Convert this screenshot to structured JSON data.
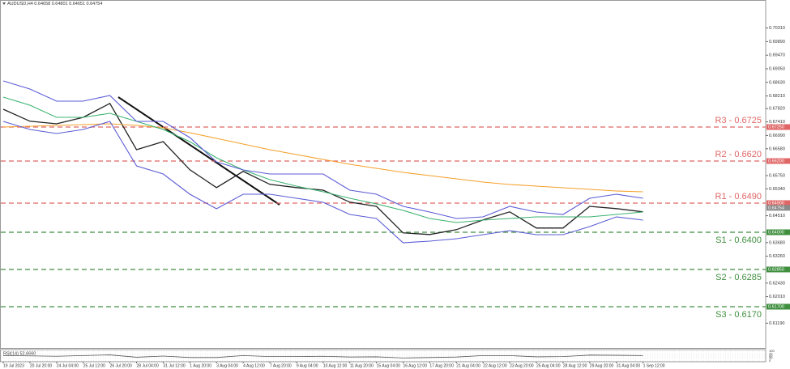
{
  "chart_data": {
    "type": "line",
    "title": "AUDUSD,H4 0.64658 0.64801 0.64651 0.64754",
    "categories": [
      "19 Jul 2023",
      "20 Jul 20:00",
      "24 Jul 04:00",
      "25 Jul 12:00",
      "26 Jul 20:00",
      "28 Jul 04:00",
      "31 Jul 12:00",
      "1 Aug 20:00",
      "3 Aug 04:00",
      "4 Aug 12:00",
      "7 Aug 20:00",
      "9 Aug 04:00",
      "10 Aug 12:00",
      "11 Aug 20:00",
      "15 Aug 04:00",
      "16 Aug 12:00",
      "17 Aug 20:00",
      "21 Aug 04:00",
      "22 Aug 12:00",
      "23 Aug 20:00",
      "25 Aug 04:00",
      "28 Aug 12:00",
      "29 Aug 20:00",
      "31 Aug 04:00",
      "1 Sep 12:00"
    ],
    "series": [
      {
        "color": "#222222",
        "values": [
          0.678,
          0.6743,
          0.6735,
          0.6755,
          0.6798,
          0.6655,
          0.668,
          0.6593,
          0.6538,
          0.6588,
          0.6548,
          0.6538,
          0.653,
          0.6493,
          0.648,
          0.6398,
          0.6393,
          0.6408,
          0.6438,
          0.6463,
          0.6413,
          0.6413,
          0.648,
          0.6473,
          0.6463
        ]
      },
      {
        "color": "#f5a02a",
        "values": [
          0.6725,
          0.67275,
          0.673,
          0.67325,
          0.6735,
          0.673,
          0.67225,
          0.67075,
          0.669,
          0.66725,
          0.6655,
          0.664,
          0.6625,
          0.661,
          0.65975,
          0.6585,
          0.6575,
          0.6565,
          0.6555,
          0.65475,
          0.65425,
          0.65375,
          0.65325,
          0.65275,
          0.6525
        ]
      },
      {
        "color": "#3cb371",
        "values": [
          0.68175,
          0.67925,
          0.6755,
          0.6755,
          0.67675,
          0.67425,
          0.67175,
          0.668,
          0.663,
          0.65925,
          0.65625,
          0.65425,
          0.6525,
          0.6505,
          0.64875,
          0.64675,
          0.64425,
          0.643,
          0.64375,
          0.64425,
          0.64475,
          0.64475,
          0.64475,
          0.6455,
          0.64625
        ]
      },
      {
        "color": "#5b5bd6",
        "values": [
          0.68675,
          0.68425,
          0.6805,
          0.6805,
          0.68225,
          0.67425,
          0.67425,
          0.66925,
          0.66175,
          0.65925,
          0.658,
          0.658,
          0.658,
          0.653,
          0.65175,
          0.648,
          0.64625,
          0.64425,
          0.64475,
          0.648,
          0.64625,
          0.6455,
          0.6505,
          0.65175,
          0.6505
        ]
      },
      {
        "color": "#5b5bd6",
        "values": [
          0.67425,
          0.67175,
          0.6705,
          0.67175,
          0.67425,
          0.6605,
          0.658,
          0.65175,
          0.64725,
          0.65175,
          0.65175,
          0.6505,
          0.64925,
          0.6455,
          0.64425,
          0.63675,
          0.63725,
          0.638,
          0.63925,
          0.6405,
          0.63925,
          0.63925,
          0.64175,
          0.64475,
          0.64375
        ]
      }
    ],
    "ylim": [
      0.60425,
      0.71175
    ],
    "yticks": [
      {
        "value": 0.7031,
        "label": "0.70310"
      },
      {
        "value": 0.6989,
        "label": "0.69890"
      },
      {
        "value": 0.6947,
        "label": "0.69470"
      },
      {
        "value": 0.6905,
        "label": "0.69050"
      },
      {
        "value": 0.6863,
        "label": "0.68630"
      },
      {
        "value": 0.6821,
        "label": "0.68210"
      },
      {
        "value": 0.6782,
        "label": "0.67820"
      },
      {
        "value": 0.6741,
        "label": "0.67410"
      },
      {
        "value": 0.6699,
        "label": "0.66990"
      },
      {
        "value": 0.6658,
        "label": "0.66580"
      },
      {
        "value": 0.6575,
        "label": "0.65750"
      },
      {
        "value": 0.6534,
        "label": "0.65340"
      },
      {
        "value": 0.6451,
        "label": "0.64510"
      },
      {
        "value": 0.6368,
        "label": "0.63680"
      },
      {
        "value": 0.6326,
        "label": "0.63260"
      },
      {
        "value": 0.6243,
        "label": "0.62430"
      },
      {
        "value": 0.6201,
        "label": "0.62010"
      },
      {
        "value": 0.6119,
        "label": "0.61190"
      }
    ],
    "levels": [
      {
        "label": "R3 - 0.6725",
        "value": 0.6725,
        "tag": "0.67250",
        "color": "#e06666"
      },
      {
        "label": "R2 - 0.6620",
        "value": 0.662,
        "tag": "0.66200",
        "color": "#e06666"
      },
      {
        "label": "R1 - 0.6490",
        "value": 0.649,
        "tag": "0.64900",
        "color": "#e06666"
      },
      {
        "label": "S1 - 0.6400",
        "value": 0.64,
        "tag": "0.64000",
        "color": "#3f8f3f"
      },
      {
        "label": "S2 - 0.6285",
        "value": 0.6285,
        "tag": "0.62850",
        "color": "#3f8f3f"
      },
      {
        "label": "S3 - 0.6170",
        "value": 0.617,
        "tag": "0.61700",
        "color": "#3f8f3f"
      }
    ],
    "current_price": {
      "value": 0.64754,
      "label": "0.64754"
    },
    "rsi": {
      "title": "RSI(14) 52.6660",
      "color": "#555555",
      "ylim": [
        0,
        100
      ],
      "yticks": [
        100,
        70,
        50,
        30,
        0
      ],
      "values": [
        55,
        52,
        48,
        55,
        62,
        38,
        50,
        35,
        35,
        55,
        45,
        45,
        48,
        40,
        42,
        30,
        35,
        40,
        55,
        55,
        42,
        45,
        60,
        58,
        55
      ]
    }
  }
}
